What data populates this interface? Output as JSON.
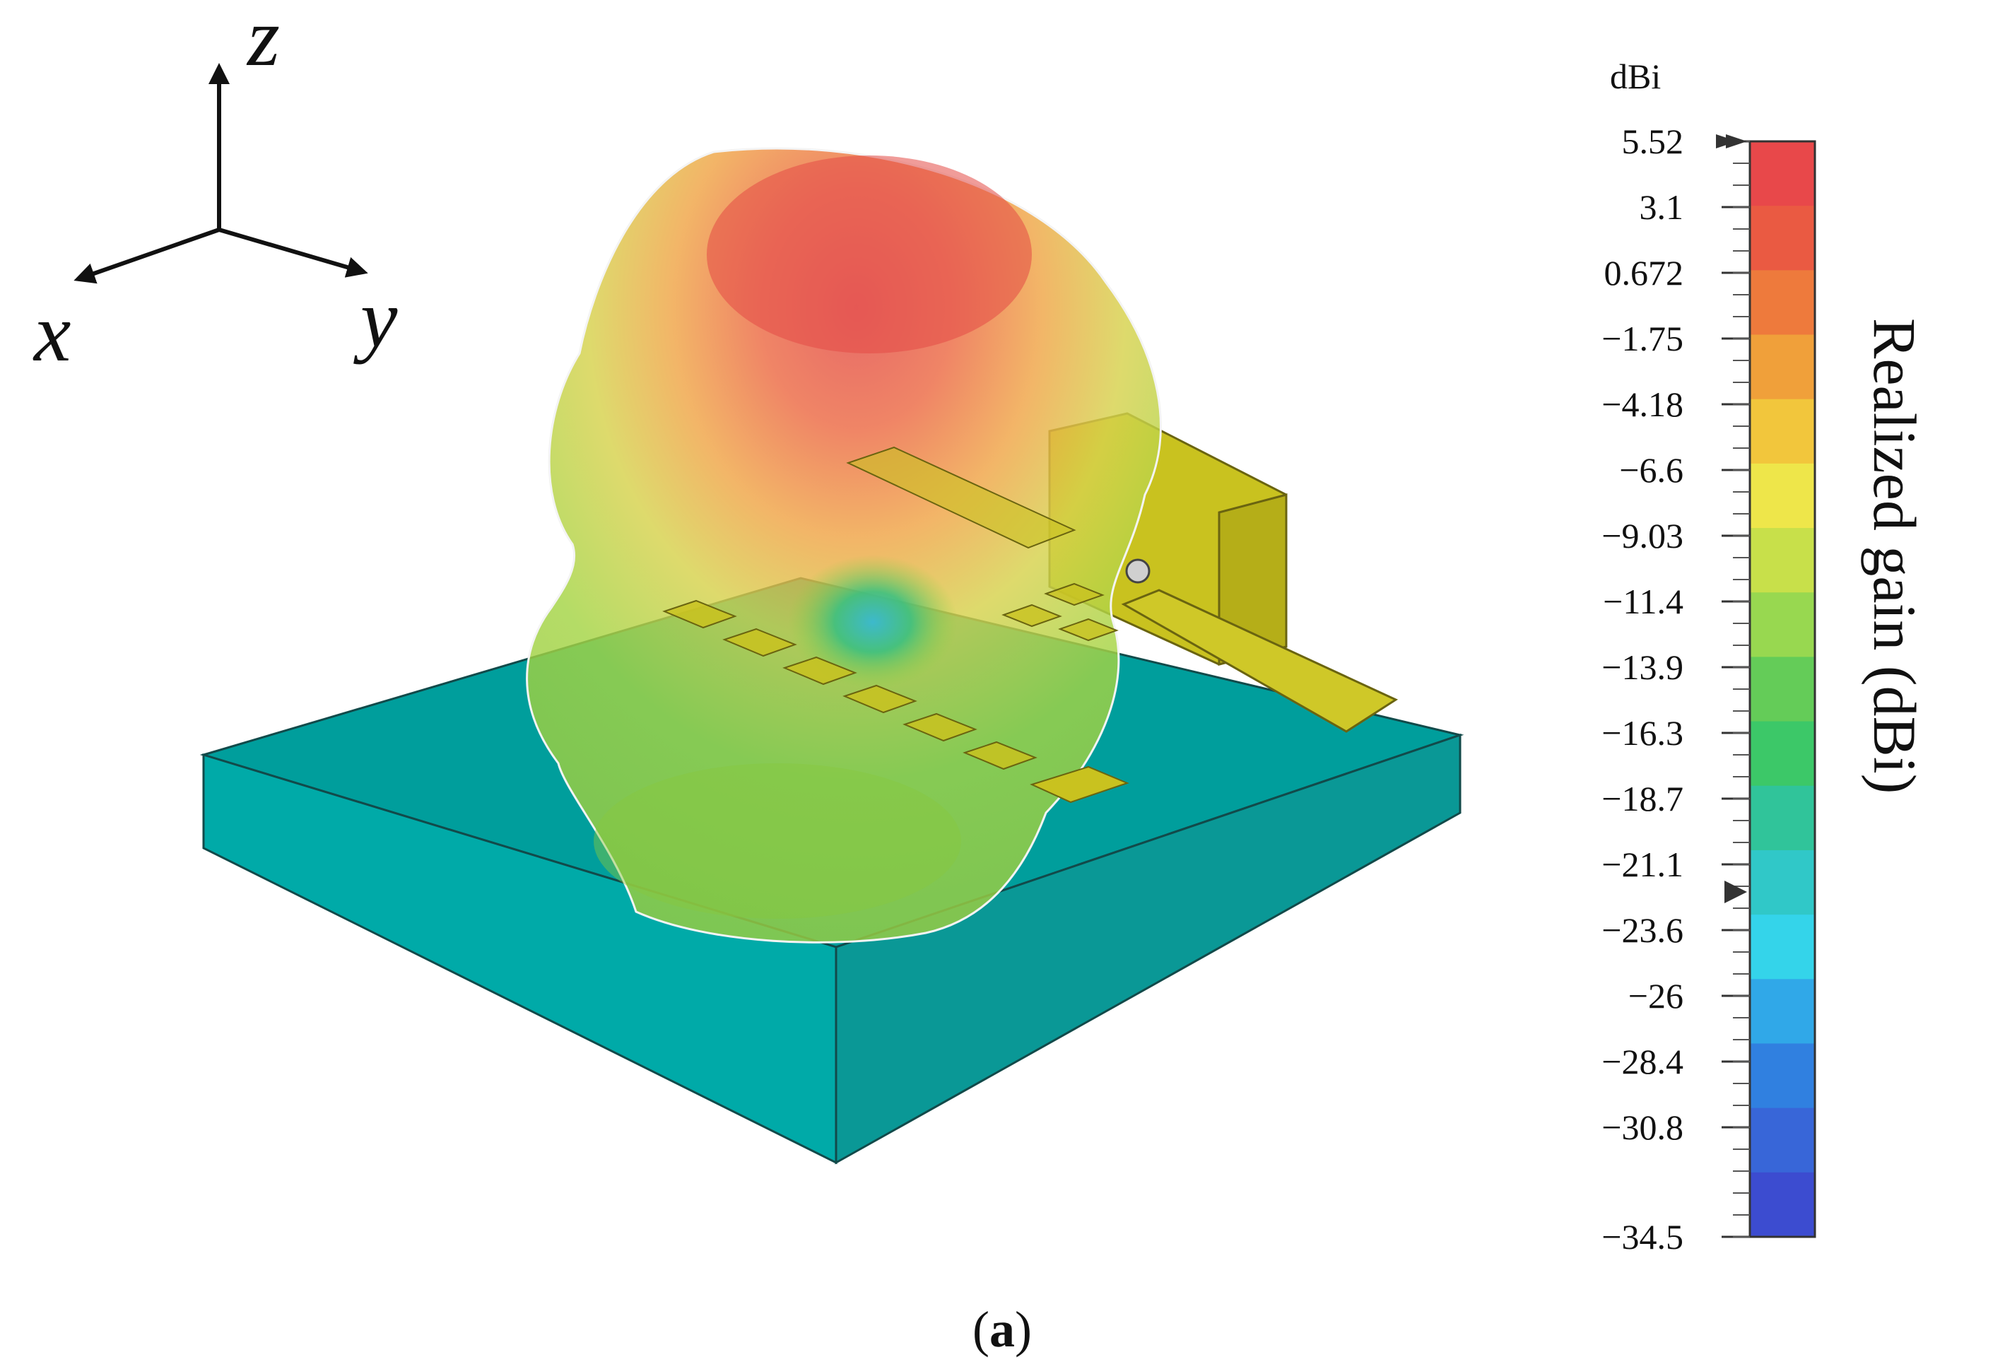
{
  "axes_triad": {
    "x_label": "x",
    "y_label": "y",
    "z_label": "z"
  },
  "colorbar": {
    "unit": "dBi",
    "title": "Realized gain (dBi)",
    "max": 5.52,
    "min": -34.5,
    "tick_labels": [
      "5.52",
      "3.1",
      "0.672",
      "−1.75",
      "−4.18",
      "−6.6",
      "−9.03",
      "−11.4",
      "−13.9",
      "−16.3",
      "−18.7",
      "−21.1",
      "−23.6",
      "−26",
      "−28.4",
      "−30.8",
      "−34.5"
    ],
    "colors": [
      "#e8484a",
      "#ea5a42",
      "#ee7a3c",
      "#f0a03a",
      "#f2c63c",
      "#eee64a",
      "#c8e04a",
      "#98d850",
      "#64cc58",
      "#3cc868",
      "#30c49a",
      "#30c8c8",
      "#34d4ea",
      "#30a8e8",
      "#3080e0",
      "#3866d8",
      "#3c4cd0"
    ]
  },
  "scene": {
    "substrate_color": "#009e9c",
    "strip_color": "#c9c21f",
    "pattern_colors": {
      "top": "#e04a48",
      "upper": "#f0a040",
      "middle": "#c8d848",
      "lower": "#8cd040",
      "null": "#38c0d8"
    }
  },
  "caption": {
    "open": "(",
    "letter": "a",
    "close": ")"
  }
}
